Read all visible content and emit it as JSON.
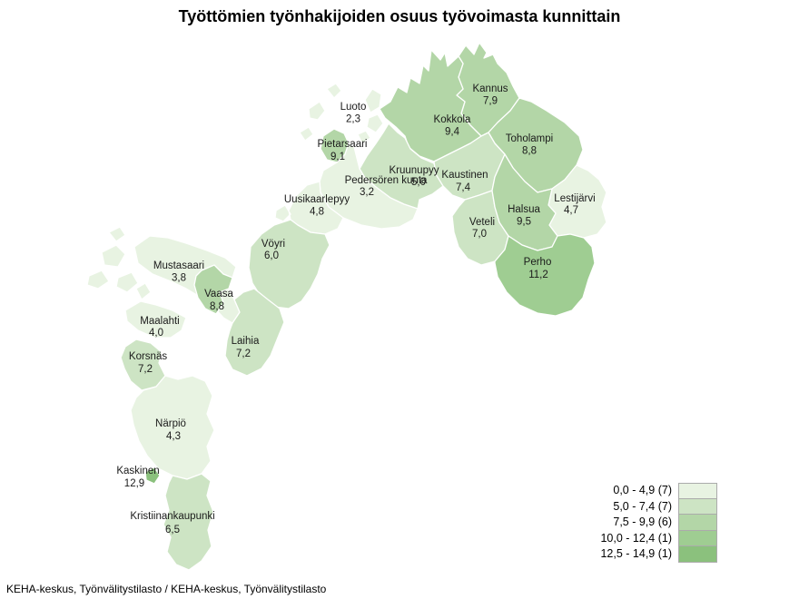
{
  "title": "Työttömien työnhakijoiden osuus työvoimasta kunnittain",
  "source": "KEHA-keskus, Työnvälitystilasto / KEHA-keskus, Työnvälitystilasto",
  "chart_data": {
    "type": "choropleth-map",
    "title": "Työttömien työnhakijoiden osuus työvoimasta kunnittain",
    "unit": "% työvoimasta",
    "legend_position": "bottom-right",
    "classes": [
      {
        "label": "0,0 - 4,9 (7)",
        "range_min": 0.0,
        "range_max": 4.9,
        "count": 7,
        "color": "#e8f3e2"
      },
      {
        "label": "5,0 - 7,4 (7)",
        "range_min": 5.0,
        "range_max": 7.4,
        "count": 7,
        "color": "#cde4c4"
      },
      {
        "label": "7,5 - 9,9 (6)",
        "range_min": 7.5,
        "range_max": 9.9,
        "count": 6,
        "color": "#b3d6a7"
      },
      {
        "label": "10,0 - 12,4 (1)",
        "range_min": 10.0,
        "range_max": 12.4,
        "count": 1,
        "color": "#9fcd92"
      },
      {
        "label": "12,5 - 14,9 (1)",
        "range_min": 12.5,
        "range_max": 14.9,
        "count": 1,
        "color": "#8bc17d"
      }
    ],
    "municipalities": [
      {
        "key": "kannus",
        "name": "Kannus",
        "display": "7,9",
        "value": 7.9,
        "class": 2
      },
      {
        "key": "kokkola",
        "name": "Kokkola",
        "display": "9,4",
        "value": 9.4,
        "class": 2
      },
      {
        "key": "toholampi",
        "name": "Toholampi",
        "display": "8,8",
        "value": 8.8,
        "class": 2
      },
      {
        "key": "luoto",
        "name": "Luoto",
        "display": "2,3",
        "value": 2.3,
        "class": 0
      },
      {
        "key": "pietarsaari",
        "name": "Pietarsaari",
        "display": "9,1",
        "value": 9.1,
        "class": 2
      },
      {
        "key": "kruunupyy",
        "name": "Kruunupyy",
        "display": "5,0",
        "value": 5.0,
        "class": 1
      },
      {
        "key": "kaustinen",
        "name": "Kaustinen",
        "display": "7,4",
        "value": 7.4,
        "class": 1
      },
      {
        "key": "pedersoren",
        "name": "Pedersören kunta",
        "display": "3,2",
        "value": 3.2,
        "class": 0
      },
      {
        "key": "uusikaarlepyy",
        "name": "Uusikaarlepyy",
        "display": "4,8",
        "value": 4.8,
        "class": 0
      },
      {
        "key": "lestijarvi",
        "name": "Lestijärvi",
        "display": "4,7",
        "value": 4.7,
        "class": 0
      },
      {
        "key": "veteli",
        "name": "Veteli",
        "display": "7,0",
        "value": 7.0,
        "class": 1
      },
      {
        "key": "halsua",
        "name": "Halsua",
        "display": "9,5",
        "value": 9.5,
        "class": 2
      },
      {
        "key": "voyri",
        "name": "Vöyri",
        "display": "6,0",
        "value": 6.0,
        "class": 1
      },
      {
        "key": "perho",
        "name": "Perho",
        "display": "11,2",
        "value": 11.2,
        "class": 3
      },
      {
        "key": "mustasaari",
        "name": "Mustasaari",
        "display": "3,8",
        "value": 3.8,
        "class": 0
      },
      {
        "key": "vaasa",
        "name": "Vaasa",
        "display": "8,8",
        "value": 8.8,
        "class": 2
      },
      {
        "key": "maalahti",
        "name": "Maalahti",
        "display": "4,0",
        "value": 4.0,
        "class": 0
      },
      {
        "key": "laihia",
        "name": "Laihia",
        "display": "7,2",
        "value": 7.2,
        "class": 1
      },
      {
        "key": "korsnas",
        "name": "Korsnäs",
        "display": "7,2",
        "value": 7.2,
        "class": 1
      },
      {
        "key": "narpio",
        "name": "Närpiö",
        "display": "4,3",
        "value": 4.3,
        "class": 0
      },
      {
        "key": "kaskinen",
        "name": "Kaskinen",
        "display": "12,9",
        "value": 12.9,
        "class": 4
      },
      {
        "key": "kristiinankaupunki",
        "name": "Kristiinankaupunki",
        "display": "6,5",
        "value": 6.5,
        "class": 1
      }
    ]
  }
}
